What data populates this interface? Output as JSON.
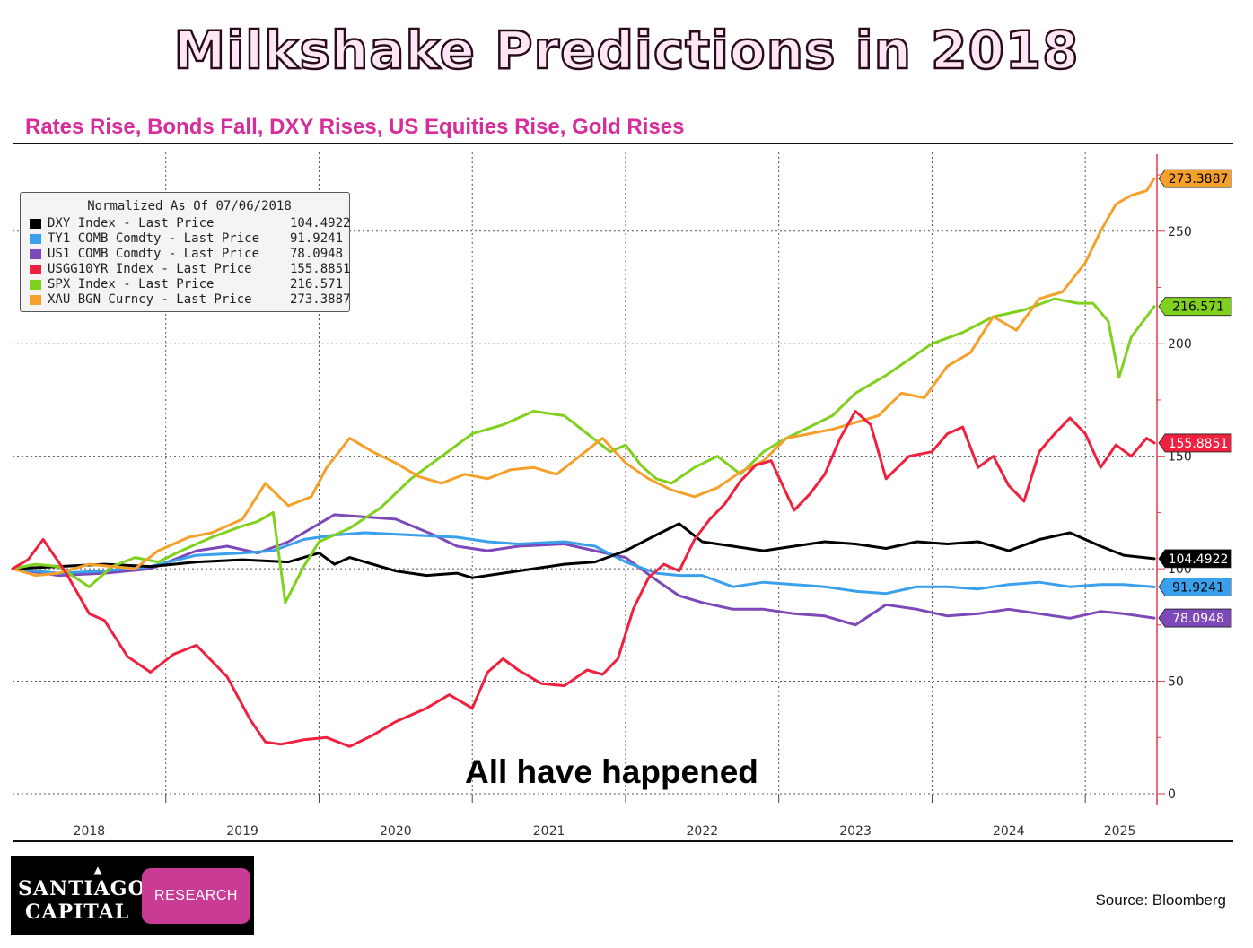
{
  "title": "Milkshake Predictions in 2018",
  "subtitle": "Rates Rise, Bonds Fall, DXY Rises, US Equities Rise, Gold Rises",
  "annotation": "All have happened",
  "source": "Source:  Bloomberg",
  "logo": {
    "line1": "SANTIAGO",
    "line2": "CAPITAL",
    "badge": "RESEARCH"
  },
  "chart_data": {
    "type": "line",
    "title": "Normalized As Of 07/06/2018",
    "xlabel": "",
    "ylabel": "",
    "xlim": [
      2018.0,
      2025.45
    ],
    "ylim": [
      0,
      285
    ],
    "y_ticks": [
      0,
      50,
      100,
      150,
      200,
      250
    ],
    "x_ticks": [
      "2018",
      "2019",
      "2020",
      "2021",
      "2022",
      "2023",
      "2024",
      "2025"
    ],
    "grid": true,
    "legend_position": "top-left",
    "series": [
      {
        "name": "DXY Index - Last Price",
        "last": "104.4922",
        "color": "#000000",
        "x": [
          2018.0,
          2018.3,
          2018.6,
          2018.9,
          2019.2,
          2019.5,
          2019.8,
          2020.0,
          2020.1,
          2020.2,
          2020.3,
          2020.5,
          2020.7,
          2020.9,
          2021.0,
          2021.2,
          2021.4,
          2021.6,
          2021.8,
          2022.0,
          2022.2,
          2022.35,
          2022.5,
          2022.7,
          2022.9,
          2023.1,
          2023.3,
          2023.5,
          2023.7,
          2023.9,
          2024.1,
          2024.3,
          2024.5,
          2024.7,
          2024.9,
          2025.1,
          2025.25,
          2025.45
        ],
        "values": [
          100,
          101,
          102,
          101,
          103,
          104,
          103,
          107,
          102,
          105,
          103,
          99,
          97,
          98,
          96,
          98,
          100,
          102,
          103,
          108,
          115,
          120,
          112,
          110,
          108,
          110,
          112,
          111,
          109,
          112,
          111,
          112,
          108,
          113,
          116,
          110,
          106,
          104.4922
        ]
      },
      {
        "name": "TY1 COMB Comdty - Last Price",
        "last": "91.9241",
        "color": "#3aa0ec",
        "x": [
          2018.0,
          2018.3,
          2018.6,
          2018.9,
          2019.2,
          2019.5,
          2019.7,
          2019.9,
          2020.1,
          2020.3,
          2020.6,
          2020.9,
          2021.1,
          2021.3,
          2021.6,
          2021.8,
          2022.0,
          2022.2,
          2022.35,
          2022.5,
          2022.7,
          2022.9,
          2023.1,
          2023.3,
          2023.5,
          2023.7,
          2023.9,
          2024.1,
          2024.3,
          2024.5,
          2024.7,
          2024.9,
          2025.1,
          2025.25,
          2025.45
        ],
        "values": [
          100,
          98,
          99,
          101,
          106,
          107,
          108,
          113,
          115,
          116,
          115,
          114,
          112,
          111,
          112,
          110,
          103,
          98,
          97,
          97,
          92,
          94,
          93,
          92,
          90,
          89,
          92,
          92,
          91,
          93,
          94,
          92,
          93,
          93,
          91.9241
        ]
      },
      {
        "name": "US1 COMB Comdty - Last Price",
        "last": "78.0948",
        "color": "#7d48b8",
        "x": [
          2018.0,
          2018.3,
          2018.6,
          2018.9,
          2019.2,
          2019.4,
          2019.6,
          2019.8,
          2019.95,
          2020.1,
          2020.3,
          2020.5,
          2020.75,
          2020.9,
          2021.1,
          2021.3,
          2021.6,
          2021.8,
          2022.0,
          2022.2,
          2022.35,
          2022.5,
          2022.7,
          2022.9,
          2023.1,
          2023.3,
          2023.5,
          2023.7,
          2023.9,
          2024.1,
          2024.3,
          2024.5,
          2024.7,
          2024.9,
          2025.1,
          2025.25,
          2025.45
        ],
        "values": [
          100,
          97,
          98,
          100,
          108,
          110,
          107,
          112,
          118,
          124,
          123,
          122,
          115,
          110,
          108,
          110,
          111,
          108,
          105,
          95,
          88,
          85,
          82,
          82,
          80,
          79,
          75,
          84,
          82,
          79,
          80,
          82,
          80,
          78,
          81,
          80,
          78.0948
        ]
      },
      {
        "name": "USGG10YR Index - Last Price",
        "last": "155.8851",
        "color": "#f0203f",
        "x": [
          2018.0,
          2018.1,
          2018.2,
          2018.35,
          2018.5,
          2018.6,
          2018.75,
          2018.9,
          2019.05,
          2019.2,
          2019.4,
          2019.55,
          2019.65,
          2019.75,
          2019.9,
          2020.05,
          2020.2,
          2020.35,
          2020.5,
          2020.7,
          2020.85,
          2021.0,
          2021.1,
          2021.2,
          2021.3,
          2021.45,
          2021.6,
          2021.75,
          2021.85,
          2021.95,
          2022.05,
          2022.15,
          2022.25,
          2022.35,
          2022.45,
          2022.55,
          2022.65,
          2022.75,
          2022.85,
          2022.95,
          2023.1,
          2023.2,
          2023.3,
          2023.4,
          2023.5,
          2023.6,
          2023.7,
          2023.85,
          2024.0,
          2024.1,
          2024.2,
          2024.3,
          2024.4,
          2024.5,
          2024.6,
          2024.7,
          2024.8,
          2024.9,
          2025.0,
          2025.1,
          2025.2,
          2025.3,
          2025.4,
          2025.45
        ],
        "values": [
          100,
          104,
          113,
          98,
          80,
          77,
          61,
          54,
          62,
          66,
          52,
          33,
          23,
          22,
          24,
          25,
          21,
          26,
          32,
          38,
          44,
          38,
          54,
          60,
          55,
          49,
          48,
          55,
          53,
          60,
          82,
          96,
          102,
          99,
          113,
          122,
          129,
          139,
          146,
          148,
          126,
          133,
          142,
          158,
          170,
          164,
          140,
          150,
          152,
          160,
          163,
          145,
          150,
          137,
          130,
          152,
          160,
          167,
          160,
          145,
          155,
          150,
          158,
          155.8851
        ]
      },
      {
        "name": "SPX Index - Last Price",
        "last": "216.571",
        "color": "#80d01e",
        "x": [
          2018.0,
          2018.15,
          2018.3,
          2018.5,
          2018.65,
          2018.8,
          2018.95,
          2019.1,
          2019.3,
          2019.5,
          2019.6,
          2019.7,
          2019.78,
          2019.9,
          2020.0,
          2020.2,
          2020.4,
          2020.6,
          2020.8,
          2021.0,
          2021.2,
          2021.4,
          2021.6,
          2021.75,
          2021.9,
          2022.0,
          2022.1,
          2022.2,
          2022.3,
          2022.45,
          2022.6,
          2022.75,
          2022.9,
          2023.05,
          2023.2,
          2023.35,
          2023.5,
          2023.7,
          2023.85,
          2024.0,
          2024.2,
          2024.4,
          2024.6,
          2024.8,
          2024.95,
          2025.05,
          2025.15,
          2025.22,
          2025.3,
          2025.4,
          2025.45
        ],
        "values": [
          100,
          102,
          101,
          92,
          101,
          105,
          103,
          108,
          114,
          119,
          121,
          125,
          85,
          101,
          112,
          118,
          127,
          140,
          150,
          160,
          164,
          170,
          168,
          160,
          152,
          155,
          146,
          140,
          138,
          145,
          150,
          142,
          152,
          158,
          163,
          168,
          178,
          186,
          193,
          200,
          205,
          212,
          215,
          220,
          218,
          218,
          210,
          185,
          203,
          212,
          216.571
        ]
      },
      {
        "name": "XAU BGN Curncy - Last Price",
        "last": "273.3887",
        "color": "#f5a02b",
        "x": [
          2018.0,
          2018.15,
          2018.3,
          2018.5,
          2018.65,
          2018.8,
          2018.95,
          2019.15,
          2019.3,
          2019.5,
          2019.65,
          2019.8,
          2019.95,
          2020.05,
          2020.2,
          2020.35,
          2020.5,
          2020.65,
          2020.8,
          2020.95,
          2021.1,
          2021.25,
          2021.4,
          2021.55,
          2021.7,
          2021.85,
          2022.0,
          2022.15,
          2022.3,
          2022.45,
          2022.6,
          2022.75,
          2022.9,
          2023.05,
          2023.2,
          2023.35,
          2023.5,
          2023.65,
          2023.8,
          2023.95,
          2024.1,
          2024.25,
          2024.4,
          2024.55,
          2024.7,
          2024.85,
          2025.0,
          2025.1,
          2025.2,
          2025.3,
          2025.4,
          2025.45
        ],
        "values": [
          100,
          97,
          98,
          102,
          101,
          100,
          108,
          114,
          116,
          122,
          138,
          128,
          132,
          145,
          158,
          152,
          147,
          141,
          138,
          142,
          140,
          144,
          145,
          142,
          150,
          158,
          147,
          140,
          135,
          132,
          136,
          143,
          148,
          158,
          160,
          162,
          165,
          168,
          178,
          176,
          190,
          196,
          212,
          206,
          220,
          223,
          236,
          250,
          262,
          266,
          268,
          273.3887
        ]
      }
    ]
  }
}
